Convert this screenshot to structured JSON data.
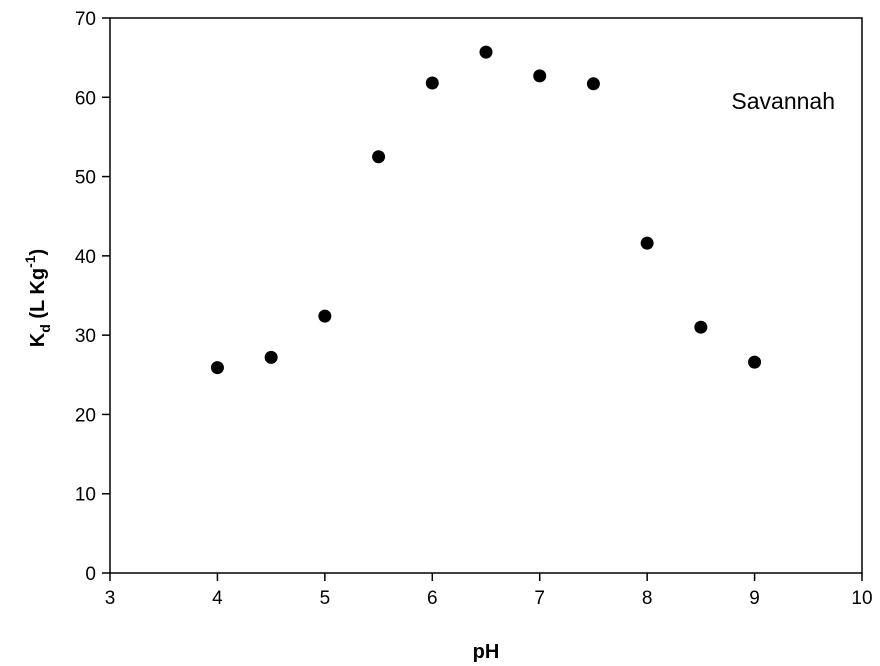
{
  "chart_data": {
    "type": "scatter",
    "x": [
      4,
      4.5,
      5,
      5.5,
      6,
      6.5,
      7,
      7.5,
      8,
      8.5,
      9
    ],
    "y": [
      25.9,
      27.2,
      32.4,
      52.5,
      61.8,
      65.7,
      62.7,
      61.7,
      41.6,
      31.0,
      26.6
    ],
    "xlabel": "pH",
    "ylabel": {
      "main": "K",
      "sub": "d",
      "mid": " (L Kg",
      "sup": "-1",
      "end": ")"
    },
    "annotation": "Savannah",
    "xlim": [
      3,
      10
    ],
    "ylim": [
      0,
      70
    ],
    "xticks": [
      "3",
      "4",
      "5",
      "6",
      "7",
      "8",
      "9",
      "10"
    ],
    "yticks": [
      "0",
      "10",
      "20",
      "30",
      "40",
      "50",
      "60",
      "70"
    ],
    "grid": false,
    "marker_color": "#000000"
  }
}
